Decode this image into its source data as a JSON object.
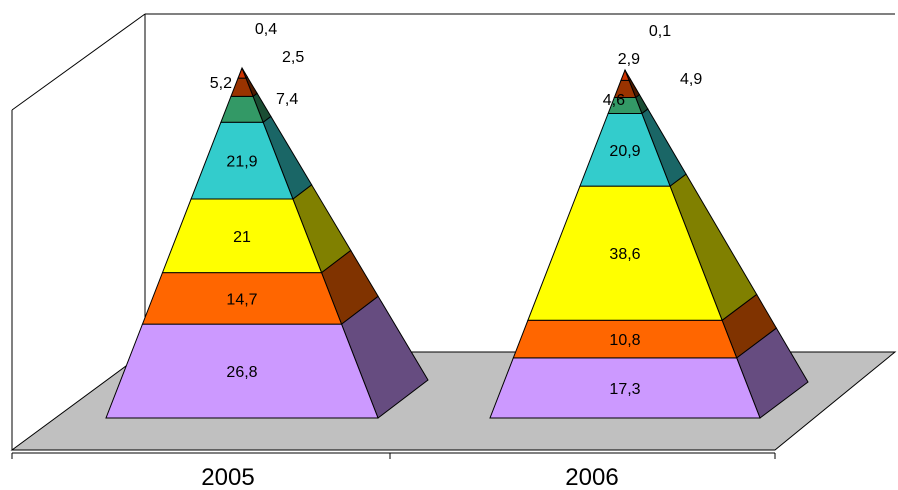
{
  "chart_data": {
    "type": "pyramid",
    "categories": [
      "2005",
      "2006"
    ],
    "series": [
      {
        "values": [
          26.8,
          17.3
        ],
        "labels": [
          "26,8",
          "17,3"
        ],
        "front_color": "#cc99ff",
        "side_color": "#664c80"
      },
      {
        "values": [
          14.7,
          10.8
        ],
        "labels": [
          "14,7",
          "10,8"
        ],
        "front_color": "#ff6600",
        "side_color": "#803300"
      },
      {
        "values": [
          21.0,
          38.6
        ],
        "labels": [
          "21",
          "38,6"
        ],
        "front_color": "#ffff00",
        "side_color": "#808000"
      },
      {
        "values": [
          21.9,
          20.9
        ],
        "labels": [
          "21,9",
          "20,9"
        ],
        "front_color": "#33cccc",
        "side_color": "#1a6666"
      },
      {
        "values": [
          7.4,
          4.6
        ],
        "labels": [
          "7,4",
          "4,6"
        ],
        "front_color": "#339966",
        "side_color": "#1a4d33"
      },
      {
        "values": [
          5.2,
          4.9
        ],
        "labels": [
          "5,2",
          "4,9"
        ],
        "front_color": "#993300",
        "side_color": "#4d1a00"
      },
      {
        "values": [
          2.5,
          2.9
        ],
        "labels": [
          "2,5",
          "2,9"
        ],
        "front_color": "#cc3300",
        "side_color": "#661a00"
      },
      {
        "values": [
          0.4,
          0.1
        ],
        "labels": [
          "0,4",
          "0,1"
        ],
        "front_color": "#000080",
        "side_color": "#000040"
      }
    ],
    "floor_color": "#c0c0c0",
    "grid": false,
    "legend": "none"
  }
}
